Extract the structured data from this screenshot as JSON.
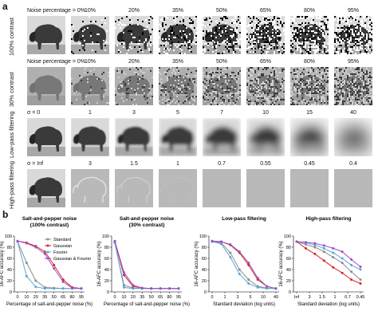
{
  "panel_a": {
    "letter": "a",
    "rows": [
      {
        "row_label": "Noise percentage",
        "side_label": "100% contrast",
        "captions": [
          "Noise percentage = 0%",
          "10%",
          "20%",
          "35%",
          "50%",
          "65%",
          "80%",
          "95%"
        ],
        "kind": "sp",
        "levels": [
          0,
          0.1,
          0.2,
          0.35,
          0.5,
          0.65,
          0.8,
          0.95
        ],
        "contrast": 1.0
      },
      {
        "row_label": "",
        "side_label": "30% contrast",
        "captions": [
          "Noise percentage = 0%",
          "10%",
          "20%",
          "35%",
          "50%",
          "65%",
          "80%",
          "95%"
        ],
        "kind": "sp",
        "levels": [
          0,
          0.1,
          0.2,
          0.35,
          0.5,
          0.65,
          0.8,
          0.95
        ],
        "contrast": 0.3
      },
      {
        "row_label": "σ",
        "side_label": "Low-pass filtering",
        "captions": [
          "σ = 0",
          "1",
          "3",
          "5",
          "7",
          "10",
          "15",
          "40"
        ],
        "kind": "lp",
        "levels": [
          0,
          1,
          3,
          5,
          7,
          10,
          15,
          40
        ],
        "contrast": 1.0
      },
      {
        "row_label": "σ",
        "side_label": "High-pass filtering",
        "captions": [
          "σ = Inf",
          "3",
          "1.5",
          "1",
          "0.7",
          "0.55",
          "0.45",
          "0.4"
        ],
        "kind": "hp",
        "levels": [
          99,
          3,
          1.5,
          1,
          0.7,
          0.55,
          0.45,
          0.4
        ],
        "contrast": 1.0
      }
    ]
  },
  "panel_b": {
    "letter": "b"
  },
  "colors": {
    "standard": "#8c8c8c",
    "gaussian": "#d62728",
    "fourier": "#5aa7d8",
    "gaussian_fourier": "#9b4fc4"
  },
  "chart_data": [
    {
      "type": "line",
      "title": "Salt-and-pepper noise\n(100% contrast)",
      "xlabel": "Percentage of salt-and-pepper noise (%)",
      "ylabel": "16-AFC accuracy (%)",
      "x_ticks": [
        "0",
        "10",
        "20",
        "35",
        "50",
        "65",
        "80",
        "95"
      ],
      "ylim": [
        0,
        100
      ],
      "y_ticks": [
        0,
        20,
        40,
        60,
        80,
        100
      ],
      "legend": [
        "Standard",
        "Gaussian",
        "Fourier",
        "Gaussian & Fourier"
      ],
      "x": [
        0,
        10,
        20,
        35,
        50,
        65,
        80,
        95
      ],
      "series": [
        {
          "name": "Standard",
          "values": [
            90,
            52,
            20,
            8,
            7,
            6,
            6,
            6
          ]
        },
        {
          "name": "Gaussian",
          "values": [
            91,
            88,
            82,
            72,
            48,
            22,
            8,
            6
          ]
        },
        {
          "name": "Fourier",
          "values": [
            90,
            28,
            9,
            6,
            6,
            6,
            6,
            6
          ]
        },
        {
          "name": "Gaussian & Fourier",
          "values": [
            91,
            87,
            80,
            68,
            42,
            18,
            7,
            6
          ]
        }
      ]
    },
    {
      "type": "line",
      "title": "Salt-and-pepper noise\n(30% contrast)",
      "xlabel": "Percentage of salt-and-pepper noise (%)",
      "ylabel": "16-AFC accuracy (%)",
      "x_ticks": [
        "0",
        "10",
        "20",
        "35",
        "50",
        "65",
        "80",
        "95"
      ],
      "ylim": [
        0,
        100
      ],
      "y_ticks": [
        0,
        20,
        40,
        60,
        80,
        100
      ],
      "x": [
        0,
        10,
        20,
        35,
        50,
        65,
        80,
        95
      ],
      "series": [
        {
          "name": "Standard",
          "values": [
            88,
            12,
            7,
            6,
            6,
            6,
            6,
            6
          ]
        },
        {
          "name": "Gaussian",
          "values": [
            90,
            30,
            10,
            7,
            6,
            6,
            6,
            6
          ]
        },
        {
          "name": "Fourier",
          "values": [
            88,
            8,
            6,
            6,
            6,
            6,
            6,
            6
          ]
        },
        {
          "name": "Gaussian & Fourier",
          "values": [
            91,
            35,
            12,
            7,
            6,
            6,
            6,
            6
          ]
        }
      ]
    },
    {
      "type": "line",
      "title": "Low-pass filtering",
      "xlabel": "Standard deviation (log units)",
      "ylabel": "16-AFC accuracy (%)",
      "x_ticks": [
        "0",
        "1",
        "3",
        "5",
        "10",
        "40"
      ],
      "ylim": [
        0,
        100
      ],
      "y_ticks": [
        0,
        20,
        40,
        60,
        80,
        100
      ],
      "x": [
        0,
        1,
        3,
        5,
        7,
        10,
        15,
        40
      ],
      "series": [
        {
          "name": "Standard",
          "values": [
            90,
            88,
            70,
            40,
            22,
            10,
            7,
            6
          ]
        },
        {
          "name": "Gaussian",
          "values": [
            91,
            90,
            84,
            70,
            48,
            22,
            10,
            6
          ]
        },
        {
          "name": "Fourier",
          "values": [
            90,
            86,
            62,
            32,
            15,
            8,
            6,
            6
          ]
        },
        {
          "name": "Gaussian & Fourier",
          "values": [
            91,
            90,
            85,
            72,
            52,
            25,
            10,
            6
          ]
        }
      ]
    },
    {
      "type": "line",
      "title": "High-pass filtering",
      "xlabel": "Standard deviation (log units)",
      "ylabel": "16-AFC accuracy (%)",
      "x_ticks": [
        "Inf",
        "3",
        "1.5",
        "1",
        "0.7",
        "0.45"
      ],
      "ylim": [
        0,
        100
      ],
      "y_ticks": [
        0,
        20,
        40,
        60,
        80,
        100
      ],
      "x": [
        "Inf",
        "3",
        "1.5",
        "1",
        "0.7",
        "0.55",
        "0.45",
        "0.4"
      ],
      "series": [
        {
          "name": "Standard",
          "values": [
            90,
            85,
            80,
            72,
            62,
            52,
            36,
            22
          ]
        },
        {
          "name": "Gaussian",
          "values": [
            90,
            78,
            68,
            56,
            44,
            34,
            22,
            15
          ]
        },
        {
          "name": "Fourier",
          "values": [
            90,
            88,
            84,
            78,
            70,
            60,
            48,
            40
          ]
        },
        {
          "name": "Gaussian & Fourier",
          "values": [
            90,
            89,
            87,
            83,
            78,
            72,
            58,
            45
          ]
        }
      ]
    }
  ]
}
